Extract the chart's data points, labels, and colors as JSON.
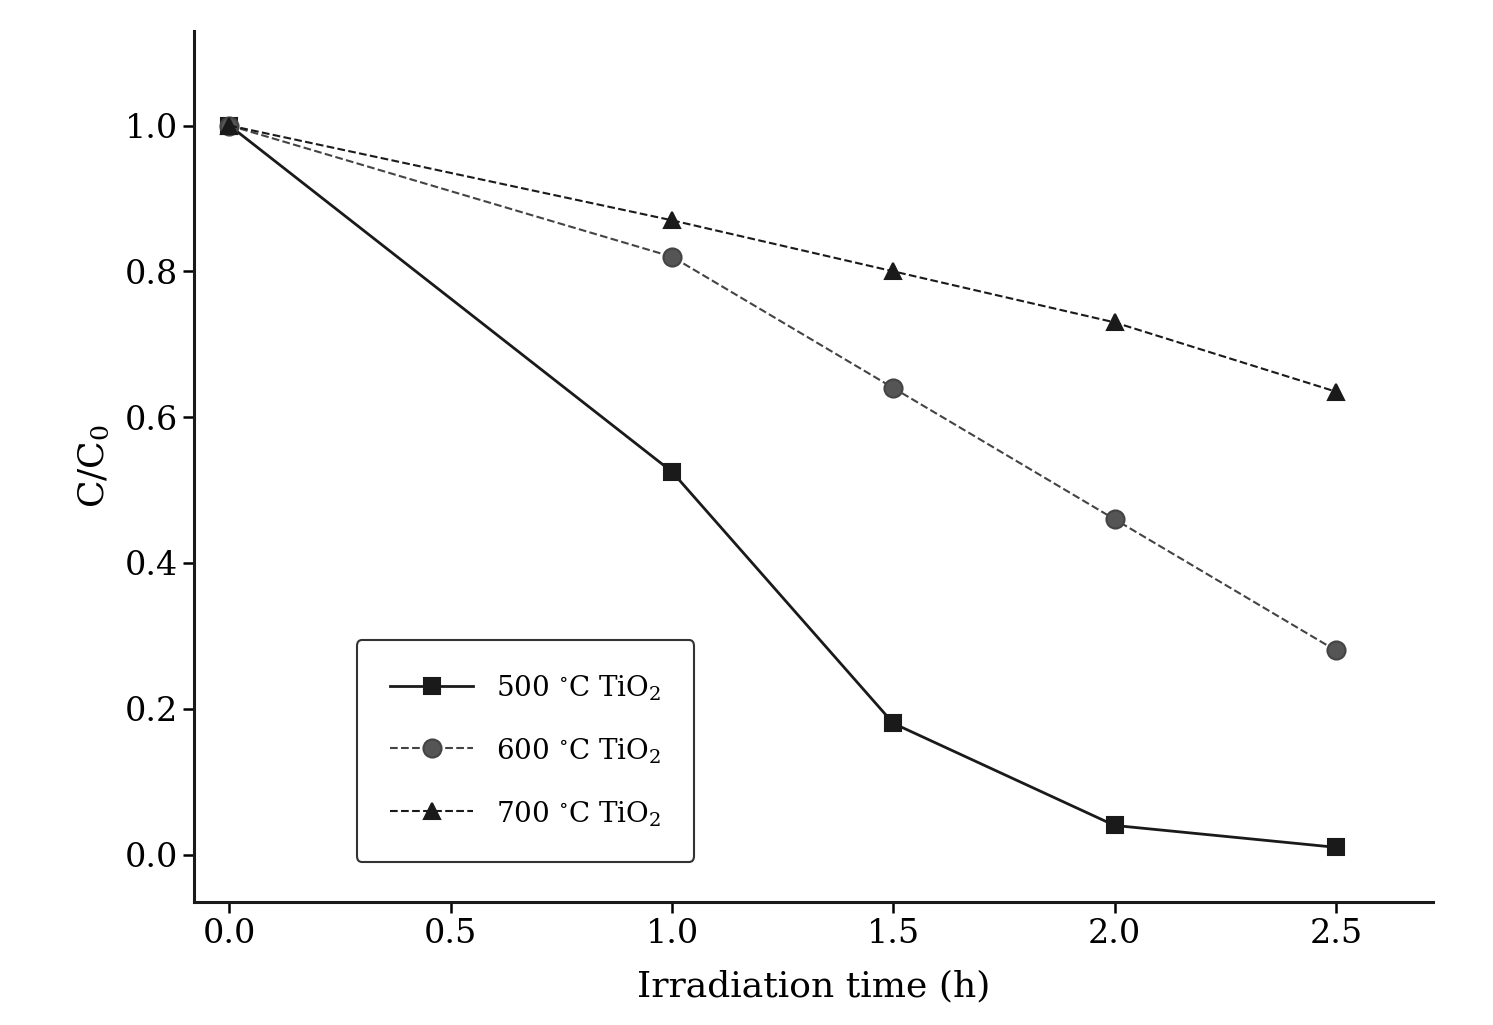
{
  "series": [
    {
      "label": "500 $^{\\circ}$C TiO$_2$",
      "x": [
        0.0,
        1.0,
        1.5,
        2.0,
        2.5
      ],
      "y": [
        1.0,
        0.525,
        0.18,
        0.04,
        0.01
      ],
      "marker": "s",
      "linestyle": "-",
      "color": "#1a1a1a",
      "markersize": 11,
      "linewidth": 2.0,
      "markerfacecolor": "#1a1a1a"
    },
    {
      "label": "600 $^{\\circ}$C TiO$_2$",
      "x": [
        0.0,
        1.0,
        1.5,
        2.0,
        2.5
      ],
      "y": [
        1.0,
        0.82,
        0.64,
        0.46,
        0.28
      ],
      "marker": "o",
      "linestyle": "--",
      "color": "#444444",
      "markersize": 13,
      "linewidth": 1.5,
      "markerfacecolor": "#555555"
    },
    {
      "label": "700 $^{\\circ}$C TiO$_2$",
      "x": [
        0.0,
        1.0,
        1.5,
        2.0,
        2.5
      ],
      "y": [
        1.0,
        0.87,
        0.8,
        0.73,
        0.635
      ],
      "marker": "^",
      "linestyle": "--",
      "color": "#1a1a1a",
      "markersize": 12,
      "linewidth": 1.5,
      "markerfacecolor": "#1a1a1a"
    }
  ],
  "xlabel": "Irradiation time (h)",
  "ylabel": "C/C$_0$",
  "xlim": [
    -0.08,
    2.72
  ],
  "ylim": [
    -0.065,
    1.13
  ],
  "xticks": [
    0.0,
    0.5,
    1.0,
    1.5,
    2.0,
    2.5
  ],
  "yticks": [
    0.0,
    0.2,
    0.4,
    0.6,
    0.8,
    1.0
  ],
  "background_color": "#ffffff",
  "tick_fontsize": 24,
  "label_fontsize": 26,
  "legend_fontsize": 20
}
